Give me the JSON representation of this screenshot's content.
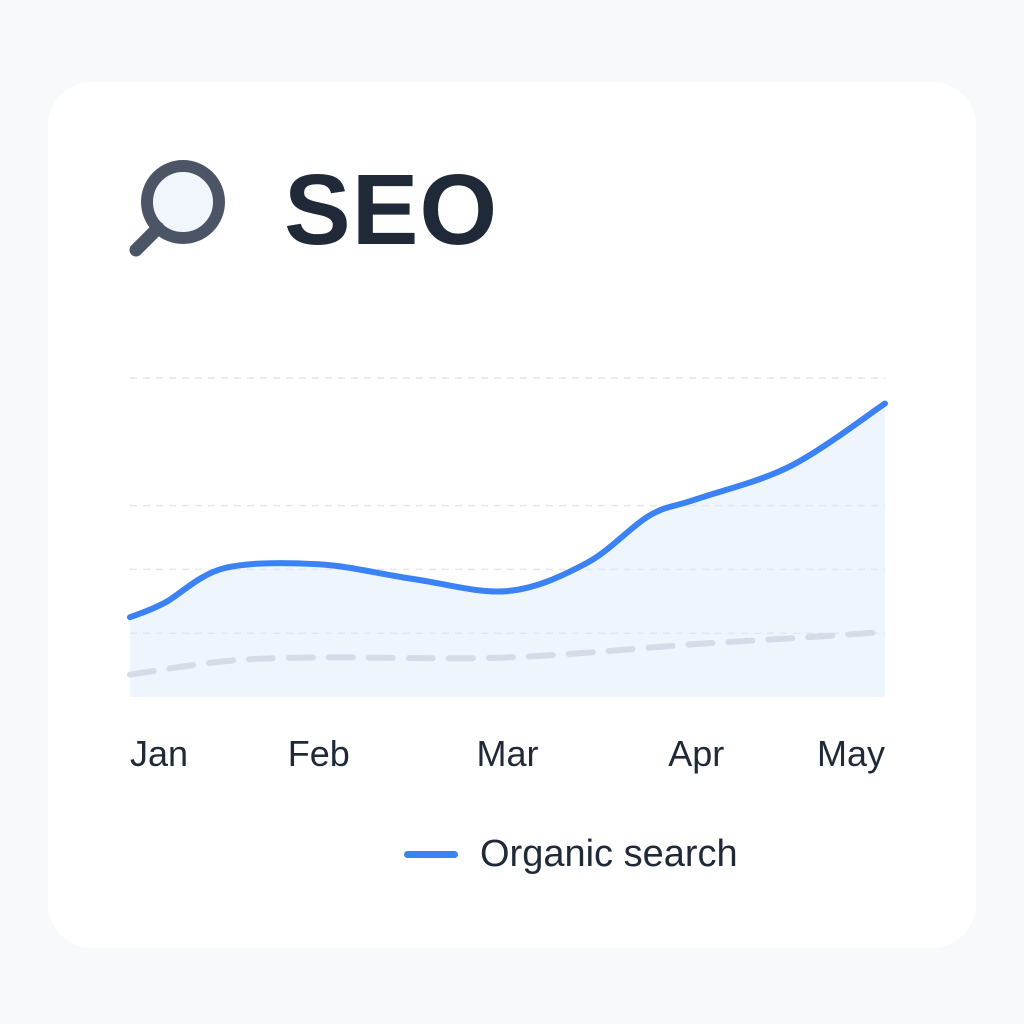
{
  "header": {
    "title": "SEO",
    "icon": "magnifying-glass-icon"
  },
  "chart_data": {
    "type": "line",
    "categories": [
      "Jan",
      "Feb",
      "Mar",
      "Apr",
      "May"
    ],
    "series": [
      {
        "name": "Organic search",
        "style": "solid",
        "color": "#3b82f6",
        "area_fill": true,
        "x": [
          0,
          0.18,
          0.5,
          1.0,
          1.5,
          2.0,
          2.42,
          2.75,
          3.0,
          3.5,
          4.0
        ],
        "values": [
          12.5,
          14.7,
          20.2,
          20.8,
          18.5,
          16.6,
          21.0,
          28.4,
          31.0,
          36.2,
          46.0
        ]
      },
      {
        "style": "dashed",
        "color": "#d5dce8",
        "x": [
          0,
          0.5,
          1.0,
          2.0,
          3.0,
          3.5,
          4.0
        ],
        "values": [
          3.5,
          5.6,
          6.2,
          6.2,
          8.3,
          9.2,
          10.2
        ]
      }
    ],
    "ylim": [
      0,
      50
    ],
    "xlim": [
      0,
      4
    ],
    "gridlines_y": [
      10,
      20,
      30
    ],
    "grid": true,
    "xlabel": "",
    "ylabel": "",
    "legend_position": "bottom-center",
    "colors": {
      "line": "#3b82f6",
      "fill": "#eef5fd",
      "grid": "#e2e6ee",
      "baseline": "#d5dce8",
      "tick_text": "#1f2937"
    }
  }
}
